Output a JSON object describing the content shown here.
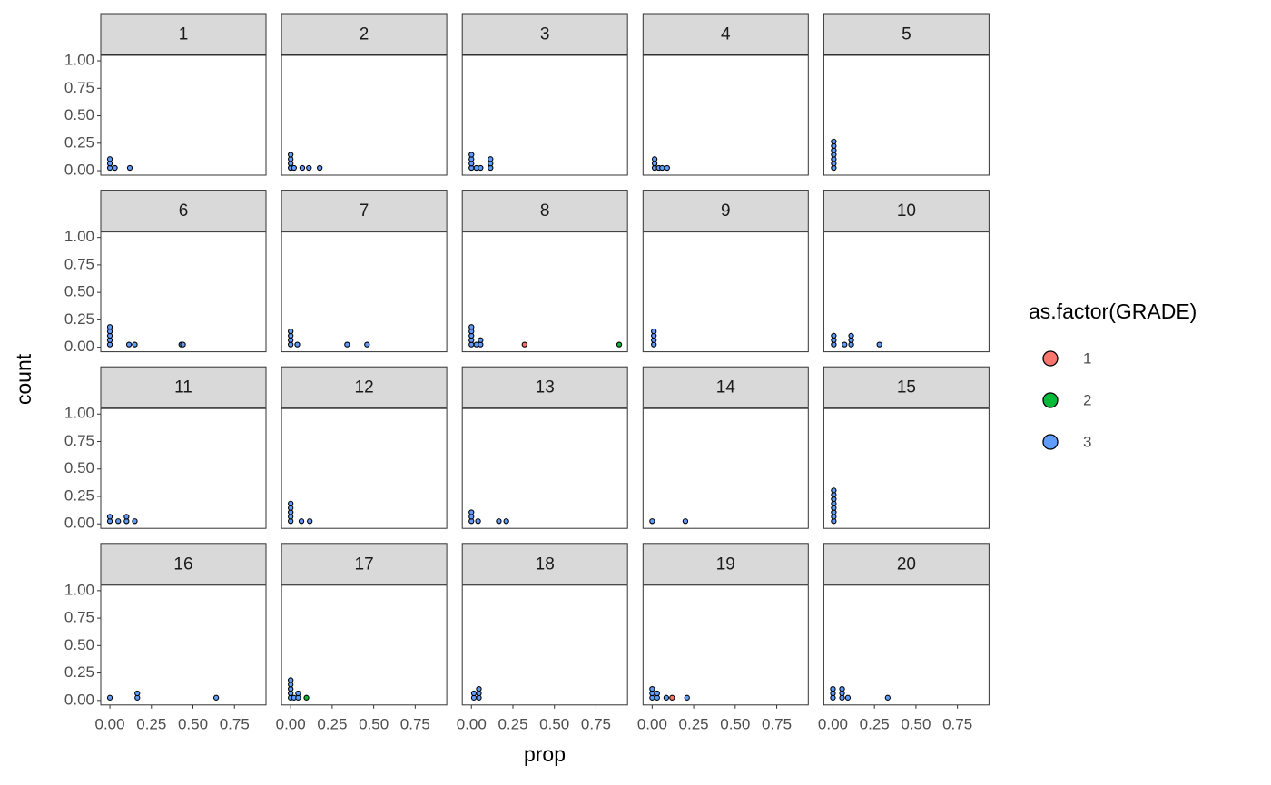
{
  "chart_data": {
    "type": "scatter",
    "xlabel": "prop",
    "ylabel": "count",
    "legend_title": "as.factor(GRADE)",
    "legend": [
      {
        "name": "1",
        "color": "#F8766D"
      },
      {
        "name": "2",
        "color": "#00BA38"
      },
      {
        "name": "3",
        "color": "#619CFF"
      }
    ],
    "xlim": [
      -0.055,
      0.94
    ],
    "xticks": [
      {
        "value": 0,
        "label": "0.00"
      },
      {
        "value": 0.25,
        "label": "0.25"
      },
      {
        "value": 0.5,
        "label": "0.50"
      },
      {
        "value": 0.75,
        "label": "0.75"
      }
    ],
    "ylim": [
      -0.041,
      1.05
    ],
    "yticks": [
      {
        "value": 0,
        "label": "0.00"
      },
      {
        "value": 0.25,
        "label": "0.25"
      },
      {
        "value": 0.5,
        "label": "0.50"
      },
      {
        "value": 0.75,
        "label": "0.75"
      },
      {
        "value": 1,
        "label": "1.00"
      }
    ],
    "panels": [
      {
        "label": "1",
        "x": [
          0,
          0,
          0,
          0.03,
          0.12
        ],
        "y": [
          0.025,
          0.065,
          0.105,
          0.025,
          0.025
        ],
        "grade": [
          "3",
          "3",
          "3",
          "3",
          "3"
        ]
      },
      {
        "label": "2",
        "x": [
          0,
          0,
          0,
          0,
          0.02,
          0.07,
          0.11,
          0.175
        ],
        "y": [
          0.025,
          0.065,
          0.105,
          0.145,
          0.025,
          0.025,
          0.025,
          0.025
        ],
        "grade": [
          "3",
          "3",
          "3",
          "3",
          "3",
          "3",
          "3",
          "3"
        ]
      },
      {
        "label": "3",
        "x": [
          0,
          0,
          0,
          0,
          0.03,
          0.055,
          0.115,
          0.115,
          0.115
        ],
        "y": [
          0.025,
          0.065,
          0.105,
          0.145,
          0.025,
          0.025,
          0.025,
          0.065,
          0.105
        ],
        "grade": [
          "3",
          "3",
          "3",
          "3",
          "3",
          "3",
          "3",
          "3",
          "3"
        ]
      },
      {
        "label": "4",
        "x": [
          0.015,
          0.015,
          0.015,
          0.04,
          0.06,
          0.09
        ],
        "y": [
          0.025,
          0.065,
          0.105,
          0.025,
          0.025,
          0.025
        ],
        "grade": [
          "3",
          "3",
          "3",
          "3",
          "3",
          "3"
        ]
      },
      {
        "label": "5",
        "x": [
          0.005,
          0.005,
          0.005,
          0.005,
          0.005,
          0.005,
          0.005
        ],
        "y": [
          0.025,
          0.065,
          0.105,
          0.145,
          0.185,
          0.225,
          0.265
        ],
        "grade": [
          "3",
          "3",
          "3",
          "3",
          "3",
          "3",
          "3"
        ]
      },
      {
        "label": "6",
        "x": [
          0,
          0,
          0,
          0,
          0,
          0.115,
          0.15,
          0.43,
          0.44
        ],
        "y": [
          0.025,
          0.065,
          0.105,
          0.145,
          0.185,
          0.025,
          0.025,
          0.025,
          0.025
        ],
        "grade": [
          "3",
          "3",
          "3",
          "3",
          "3",
          "3",
          "3",
          "3",
          "3"
        ]
      },
      {
        "label": "7",
        "x": [
          0,
          0,
          0,
          0,
          0.04,
          0.34,
          0.46
        ],
        "y": [
          0.025,
          0.065,
          0.105,
          0.145,
          0.025,
          0.025,
          0.025
        ],
        "grade": [
          "3",
          "3",
          "3",
          "3",
          "3",
          "3",
          "3"
        ]
      },
      {
        "label": "8",
        "x": [
          0,
          0,
          0,
          0,
          0,
          0.03,
          0.055,
          0.055,
          0.32,
          0.89
        ],
        "y": [
          0.025,
          0.065,
          0.105,
          0.145,
          0.185,
          0.025,
          0.025,
          0.065,
          0.025,
          0.025
        ],
        "grade": [
          "3",
          "3",
          "3",
          "3",
          "3",
          "3",
          "3",
          "3",
          "1",
          "2"
        ]
      },
      {
        "label": "9",
        "x": [
          0.01,
          0.01,
          0.01,
          0.01
        ],
        "y": [
          0.025,
          0.065,
          0.105,
          0.145
        ],
        "grade": [
          "3",
          "3",
          "3",
          "3"
        ]
      },
      {
        "label": "10",
        "x": [
          0.005,
          0.005,
          0.005,
          0.07,
          0.11,
          0.11,
          0.11,
          0.28
        ],
        "y": [
          0.025,
          0.065,
          0.105,
          0.025,
          0.025,
          0.065,
          0.105,
          0.025
        ],
        "grade": [
          "3",
          "3",
          "3",
          "3",
          "3",
          "3",
          "3",
          "3"
        ]
      },
      {
        "label": "11",
        "x": [
          0,
          0,
          0.05,
          0.1,
          0.1,
          0.15
        ],
        "y": [
          0.025,
          0.065,
          0.025,
          0.025,
          0.065,
          0.025
        ],
        "grade": [
          "3",
          "3",
          "3",
          "3",
          "3",
          "3"
        ]
      },
      {
        "label": "12",
        "x": [
          0,
          0,
          0,
          0,
          0,
          0.065,
          0.115
        ],
        "y": [
          0.025,
          0.065,
          0.105,
          0.145,
          0.185,
          0.025,
          0.025
        ],
        "grade": [
          "3",
          "3",
          "3",
          "3",
          "3",
          "3",
          "3"
        ]
      },
      {
        "label": "13",
        "x": [
          0,
          0,
          0,
          0.04,
          0.165,
          0.21
        ],
        "y": [
          0.025,
          0.065,
          0.105,
          0.025,
          0.025,
          0.025
        ],
        "grade": [
          "3",
          "3",
          "3",
          "3",
          "3",
          "3"
        ]
      },
      {
        "label": "14",
        "x": [
          0,
          0.2
        ],
        "y": [
          0.025,
          0.025
        ],
        "grade": [
          "3",
          "3"
        ]
      },
      {
        "label": "15",
        "x": [
          0.005,
          0.005,
          0.005,
          0.005,
          0.005,
          0.005,
          0.005,
          0.005
        ],
        "y": [
          0.025,
          0.065,
          0.105,
          0.145,
          0.185,
          0.225,
          0.265,
          0.305
        ],
        "grade": [
          "3",
          "3",
          "3",
          "3",
          "3",
          "3",
          "3",
          "3"
        ]
      },
      {
        "label": "16",
        "x": [
          0,
          0.165,
          0.165,
          0.64
        ],
        "y": [
          0.025,
          0.025,
          0.065,
          0.025
        ],
        "grade": [
          "3",
          "3",
          "3",
          "3"
        ]
      },
      {
        "label": "17",
        "x": [
          0,
          0,
          0,
          0,
          0,
          0.02,
          0.045,
          0.045,
          0.095
        ],
        "y": [
          0.025,
          0.065,
          0.105,
          0.145,
          0.185,
          0.025,
          0.025,
          0.065,
          0.025
        ],
        "grade": [
          "3",
          "3",
          "3",
          "3",
          "3",
          "3",
          "3",
          "3",
          "2"
        ]
      },
      {
        "label": "18",
        "x": [
          0.015,
          0.015,
          0.045,
          0.045,
          0.045
        ],
        "y": [
          0.025,
          0.065,
          0.025,
          0.065,
          0.105
        ],
        "grade": [
          "3",
          "3",
          "3",
          "3",
          "3"
        ]
      },
      {
        "label": "19",
        "x": [
          0,
          0,
          0,
          0.03,
          0.03,
          0.085,
          0.12,
          0.21
        ],
        "y": [
          0.025,
          0.065,
          0.105,
          0.025,
          0.065,
          0.025,
          0.025,
          0.025
        ],
        "grade": [
          "3",
          "3",
          "3",
          "3",
          "3",
          "3",
          "1",
          "3"
        ]
      },
      {
        "label": "20",
        "x": [
          0,
          0,
          0,
          0.055,
          0.055,
          0.055,
          0.09,
          0.33
        ],
        "y": [
          0.025,
          0.065,
          0.105,
          0.025,
          0.065,
          0.105,
          0.025,
          0.025
        ],
        "grade": [
          "3",
          "3",
          "3",
          "3",
          "3",
          "3",
          "3",
          "3"
        ]
      }
    ]
  }
}
